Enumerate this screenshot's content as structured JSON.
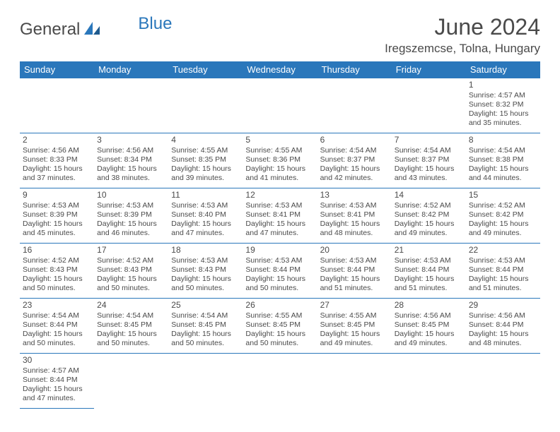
{
  "logo": {
    "text1": "General",
    "text2": "Blue",
    "text1_color": "#4a4a4a",
    "text2_color": "#2a77bb"
  },
  "title": "June 2024",
  "location": "Iregszemcse, Tolna, Hungary",
  "colors": {
    "header_bg": "#2a77bb",
    "header_text": "#ffffff",
    "border": "#2a77bb",
    "text": "#4a4a4a",
    "background": "#ffffff"
  },
  "weekdays": [
    "Sunday",
    "Monday",
    "Tuesday",
    "Wednesday",
    "Thursday",
    "Friday",
    "Saturday"
  ],
  "days": {
    "1": {
      "sunrise": "4:57 AM",
      "sunset": "8:32 PM",
      "daylight": "15 hours and 35 minutes."
    },
    "2": {
      "sunrise": "4:56 AM",
      "sunset": "8:33 PM",
      "daylight": "15 hours and 37 minutes."
    },
    "3": {
      "sunrise": "4:56 AM",
      "sunset": "8:34 PM",
      "daylight": "15 hours and 38 minutes."
    },
    "4": {
      "sunrise": "4:55 AM",
      "sunset": "8:35 PM",
      "daylight": "15 hours and 39 minutes."
    },
    "5": {
      "sunrise": "4:55 AM",
      "sunset": "8:36 PM",
      "daylight": "15 hours and 41 minutes."
    },
    "6": {
      "sunrise": "4:54 AM",
      "sunset": "8:37 PM",
      "daylight": "15 hours and 42 minutes."
    },
    "7": {
      "sunrise": "4:54 AM",
      "sunset": "8:37 PM",
      "daylight": "15 hours and 43 minutes."
    },
    "8": {
      "sunrise": "4:54 AM",
      "sunset": "8:38 PM",
      "daylight": "15 hours and 44 minutes."
    },
    "9": {
      "sunrise": "4:53 AM",
      "sunset": "8:39 PM",
      "daylight": "15 hours and 45 minutes."
    },
    "10": {
      "sunrise": "4:53 AM",
      "sunset": "8:39 PM",
      "daylight": "15 hours and 46 minutes."
    },
    "11": {
      "sunrise": "4:53 AM",
      "sunset": "8:40 PM",
      "daylight": "15 hours and 47 minutes."
    },
    "12": {
      "sunrise": "4:53 AM",
      "sunset": "8:41 PM",
      "daylight": "15 hours and 47 minutes."
    },
    "13": {
      "sunrise": "4:53 AM",
      "sunset": "8:41 PM",
      "daylight": "15 hours and 48 minutes."
    },
    "14": {
      "sunrise": "4:52 AM",
      "sunset": "8:42 PM",
      "daylight": "15 hours and 49 minutes."
    },
    "15": {
      "sunrise": "4:52 AM",
      "sunset": "8:42 PM",
      "daylight": "15 hours and 49 minutes."
    },
    "16": {
      "sunrise": "4:52 AM",
      "sunset": "8:43 PM",
      "daylight": "15 hours and 50 minutes."
    },
    "17": {
      "sunrise": "4:52 AM",
      "sunset": "8:43 PM",
      "daylight": "15 hours and 50 minutes."
    },
    "18": {
      "sunrise": "4:53 AM",
      "sunset": "8:43 PM",
      "daylight": "15 hours and 50 minutes."
    },
    "19": {
      "sunrise": "4:53 AM",
      "sunset": "8:44 PM",
      "daylight": "15 hours and 50 minutes."
    },
    "20": {
      "sunrise": "4:53 AM",
      "sunset": "8:44 PM",
      "daylight": "15 hours and 51 minutes."
    },
    "21": {
      "sunrise": "4:53 AM",
      "sunset": "8:44 PM",
      "daylight": "15 hours and 51 minutes."
    },
    "22": {
      "sunrise": "4:53 AM",
      "sunset": "8:44 PM",
      "daylight": "15 hours and 51 minutes."
    },
    "23": {
      "sunrise": "4:54 AM",
      "sunset": "8:44 PM",
      "daylight": "15 hours and 50 minutes."
    },
    "24": {
      "sunrise": "4:54 AM",
      "sunset": "8:45 PM",
      "daylight": "15 hours and 50 minutes."
    },
    "25": {
      "sunrise": "4:54 AM",
      "sunset": "8:45 PM",
      "daylight": "15 hours and 50 minutes."
    },
    "26": {
      "sunrise": "4:55 AM",
      "sunset": "8:45 PM",
      "daylight": "15 hours and 50 minutes."
    },
    "27": {
      "sunrise": "4:55 AM",
      "sunset": "8:45 PM",
      "daylight": "15 hours and 49 minutes."
    },
    "28": {
      "sunrise": "4:56 AM",
      "sunset": "8:45 PM",
      "daylight": "15 hours and 49 minutes."
    },
    "29": {
      "sunrise": "4:56 AM",
      "sunset": "8:44 PM",
      "daylight": "15 hours and 48 minutes."
    },
    "30": {
      "sunrise": "4:57 AM",
      "sunset": "8:44 PM",
      "daylight": "15 hours and 47 minutes."
    }
  },
  "labels": {
    "sunrise": "Sunrise: ",
    "sunset": "Sunset: ",
    "daylight": "Daylight: "
  },
  "layout": {
    "first_day_column": 6,
    "num_days": 30,
    "columns": 7
  }
}
